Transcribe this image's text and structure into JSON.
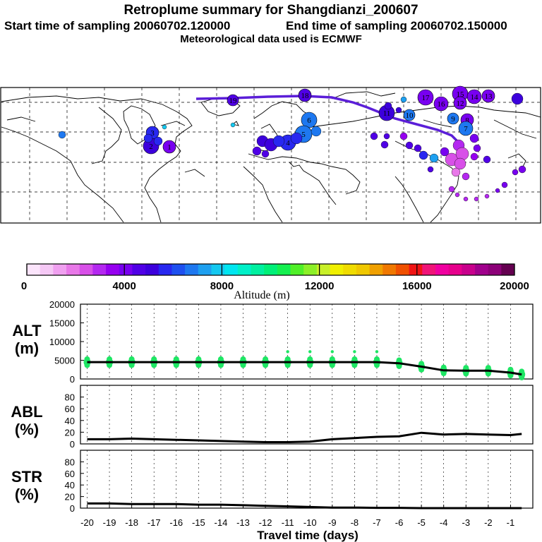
{
  "header": {
    "title": "Retroplume summary for Shangdianzi_200607",
    "start": "Start time of sampling 20060702.120000",
    "end": "End time of sampling 20060702.150000",
    "met": "Meteorological data used is ECMWF"
  },
  "colors": {
    "palette": [
      "#fbe4fb",
      "#f5c8f5",
      "#f0a0f0",
      "#e878e8",
      "#d850e8",
      "#b428f0",
      "#9600f0",
      "#7800f0",
      "#5000e6",
      "#3c00dc",
      "#2828f0",
      "#1e50f0",
      "#1e78f0",
      "#1ea0f0",
      "#14c8f0",
      "#00e6f0",
      "#00f0c8",
      "#00f0a0",
      "#00f078",
      "#14f050",
      "#50f028",
      "#8cf028",
      "#c8f028",
      "#f0f000",
      "#f0dc00",
      "#f0c800",
      "#f0a000",
      "#f07800",
      "#f05000",
      "#f01414",
      "#f01478",
      "#f000a0",
      "#e6008c",
      "#c8008c",
      "#a0008c",
      "#8c0078",
      "#640050"
    ],
    "plume_purple": "#5b1ed8",
    "dot_green": "#1ee664"
  },
  "map": {
    "grid": "dashed lat/lon lines",
    "track_labels": [
      "19",
      "18",
      "17",
      "16",
      "15",
      "14",
      "13",
      "12",
      "11",
      "10",
      "9",
      "8",
      "7",
      "6",
      "5",
      "4",
      "3",
      "2",
      "1"
    ]
  },
  "colorbar": {
    "ticks": [
      "0",
      "4000",
      "8000",
      "12000",
      "16000",
      "20000"
    ],
    "label": "Altitude (m)"
  },
  "chart_data": [
    {
      "type": "line",
      "name": "ALT",
      "panel_label_1": "ALT",
      "panel_label_2": "(m)",
      "x": [
        -20,
        -19,
        -18,
        -17,
        -16,
        -15,
        -14,
        -13,
        -12,
        -11,
        -10,
        -9,
        -8,
        -7,
        -6,
        -5,
        -4,
        -3,
        -2,
        -1,
        -0.5
      ],
      "y": [
        4500,
        4500,
        4500,
        4500,
        4500,
        4500,
        4500,
        4500,
        4500,
        4500,
        4500,
        4500,
        4500,
        4500,
        4200,
        3300,
        2300,
        2200,
        2200,
        1700,
        1200
      ],
      "ylim": [
        0,
        20000
      ],
      "yticks": [
        "0",
        "5000",
        "10000",
        "15000",
        "20000"
      ],
      "scatter_note": "green dots show spread of particle altitudes"
    },
    {
      "type": "line",
      "name": "ABL",
      "panel_label_1": "ABL",
      "panel_label_2": "(%)",
      "x": [
        -20,
        -19,
        -18,
        -17,
        -16,
        -15,
        -14,
        -13,
        -12,
        -11,
        -10,
        -9,
        -8,
        -7,
        -6,
        -5,
        -4,
        -3,
        -2,
        -1,
        -0.5
      ],
      "y": [
        8,
        8,
        9,
        8,
        7,
        6,
        5,
        4,
        3,
        3,
        4,
        8,
        10,
        12,
        13,
        19,
        16,
        17,
        16,
        15,
        17
      ],
      "ylim": [
        0,
        100
      ],
      "yticks": [
        "0",
        "20",
        "40",
        "60",
        "80"
      ]
    },
    {
      "type": "line",
      "name": "STR",
      "panel_label_1": "STR",
      "panel_label_2": "(%)",
      "x": [
        -20,
        -19,
        -18,
        -17,
        -16,
        -15,
        -14,
        -13,
        -12,
        -11,
        -10,
        -9,
        -8,
        -7,
        -6,
        -5,
        -4,
        -3,
        -2,
        -1,
        -0.5
      ],
      "y": [
        8,
        8,
        7,
        7,
        7,
        6,
        6,
        5,
        4,
        3,
        2,
        1,
        1,
        0.5,
        0.5,
        0,
        0,
        0,
        0,
        0,
        0
      ],
      "ylim": [
        0,
        100
      ],
      "yticks": [
        "0",
        "20",
        "40",
        "60",
        "80"
      ]
    }
  ],
  "xaxis": {
    "ticks": [
      "-20",
      "-19",
      "-18",
      "-17",
      "-16",
      "-15",
      "-14",
      "-13",
      "-12",
      "-11",
      "-10",
      "-9",
      "-8",
      "-7",
      "-6",
      "-5",
      "-4",
      "-3",
      "-2",
      "-1"
    ],
    "tick_values": [
      -20,
      -19,
      -18,
      -17,
      -16,
      -15,
      -14,
      -13,
      -12,
      -11,
      -10,
      -9,
      -8,
      -7,
      -6,
      -5,
      -4,
      -3,
      -2,
      -1
    ],
    "label": "Travel time (days)",
    "xlim": [
      -20.3,
      0
    ]
  }
}
